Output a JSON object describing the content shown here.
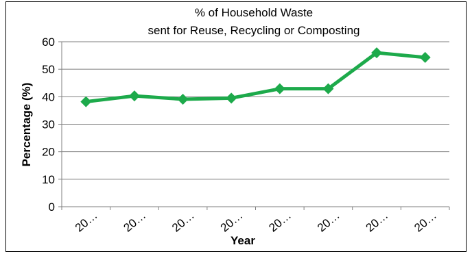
{
  "chart_data": {
    "type": "line",
    "title_line1": "% of Household Waste",
    "title_line2": "sent for Reuse, Recycling or Composting",
    "xlabel": "Year",
    "ylabel": "Percentage (%)",
    "categories": [
      "20…",
      "20…",
      "20…",
      "20…",
      "20…",
      "20…",
      "20…",
      "20…"
    ],
    "series": [
      {
        "values": [
          38.2,
          40.3,
          39.1,
          39.5,
          42.9,
          42.9,
          56.0,
          54.3
        ],
        "color": "#1DAA4B"
      }
    ],
    "ylim": [
      0,
      60
    ],
    "yticks": [
      0,
      10,
      20,
      30,
      40,
      50,
      60
    ],
    "grid": true,
    "legend": "none"
  }
}
